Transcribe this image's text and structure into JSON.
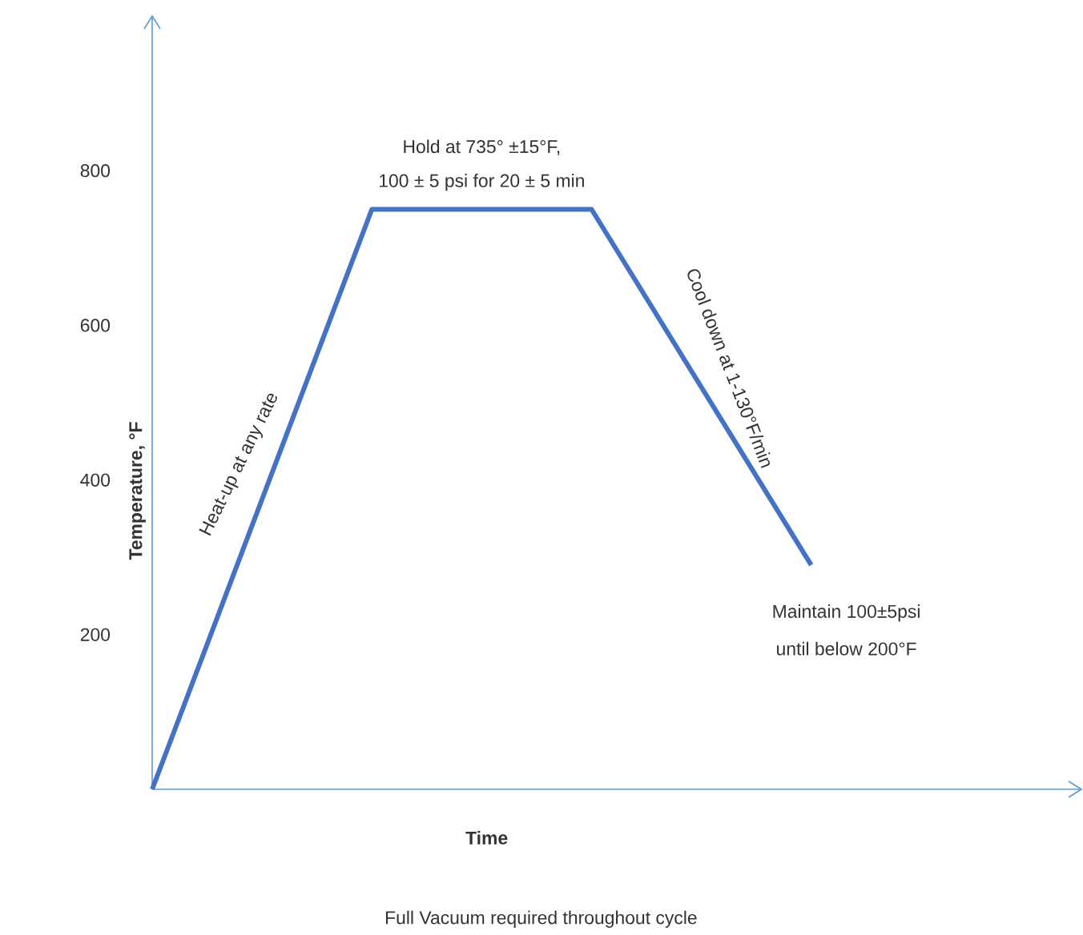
{
  "chart_data": {
    "type": "line",
    "xlabel": "Time",
    "ylabel": "Temperature, °F",
    "categories": [
      null,
      null,
      null,
      null
    ],
    "values": [
      0,
      750,
      750,
      290
    ],
    "color": "#4472c4",
    "ylim": [
      0,
      1000
    ],
    "yticks": [
      200,
      400,
      600,
      800
    ],
    "tick_labels": "y",
    "marker": "none",
    "line_style": "solid",
    "annotations": [
      "Hold at 735° ±15°F,",
      "100 ± 5 psi for 20 ± 5 min",
      "Heat-up at any rate",
      "Cool down at 1-130°F/min",
      "Maintain 100±5psi",
      "until below 200°F",
      "Full Vacuum required throughout cycle"
    ]
  }
}
